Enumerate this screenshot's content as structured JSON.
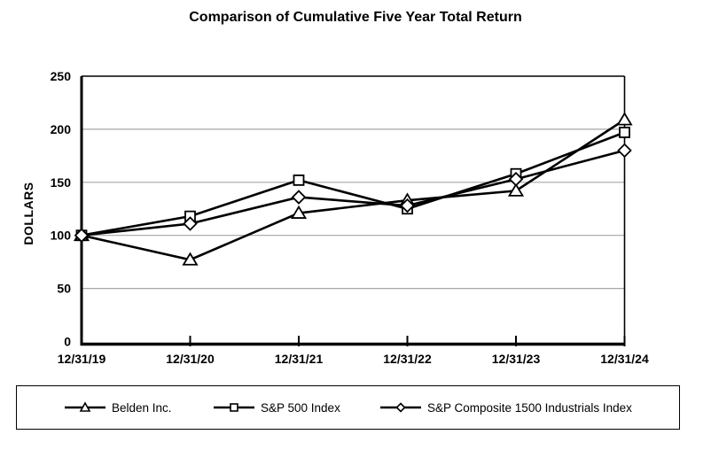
{
  "page": {
    "background": "#ffffff",
    "text_color": "#000000"
  },
  "chart_data": {
    "type": "line",
    "title": "Comparison of Cumulative Five Year Total Return",
    "xlabel": "",
    "ylabel": "DOLLARS",
    "categories": [
      "12/31/19",
      "12/31/20",
      "12/31/21",
      "12/31/22",
      "12/31/23",
      "12/31/24"
    ],
    "y_ticks": [
      0,
      50,
      100,
      150,
      200,
      250
    ],
    "ylim": [
      0,
      250
    ],
    "grid": "horizontal",
    "gridline_color": "#a6a6a6",
    "axis_color": "#000000",
    "marker_fill": "#ffffff",
    "legend_position": "bottom",
    "series": [
      {
        "name": "Belden Inc.",
        "marker": "triangle",
        "color": "#000000",
        "values": [
          100,
          77,
          121,
          133,
          142,
          209
        ]
      },
      {
        "name": "S&P 500 Index",
        "marker": "square",
        "color": "#000000",
        "values": [
          100,
          118,
          152,
          125,
          158,
          197
        ]
      },
      {
        "name": "S&P Composite 1500 Industrials Index",
        "marker": "diamond",
        "color": "#000000",
        "values": [
          100,
          111,
          136,
          128,
          153,
          180
        ]
      }
    ]
  }
}
